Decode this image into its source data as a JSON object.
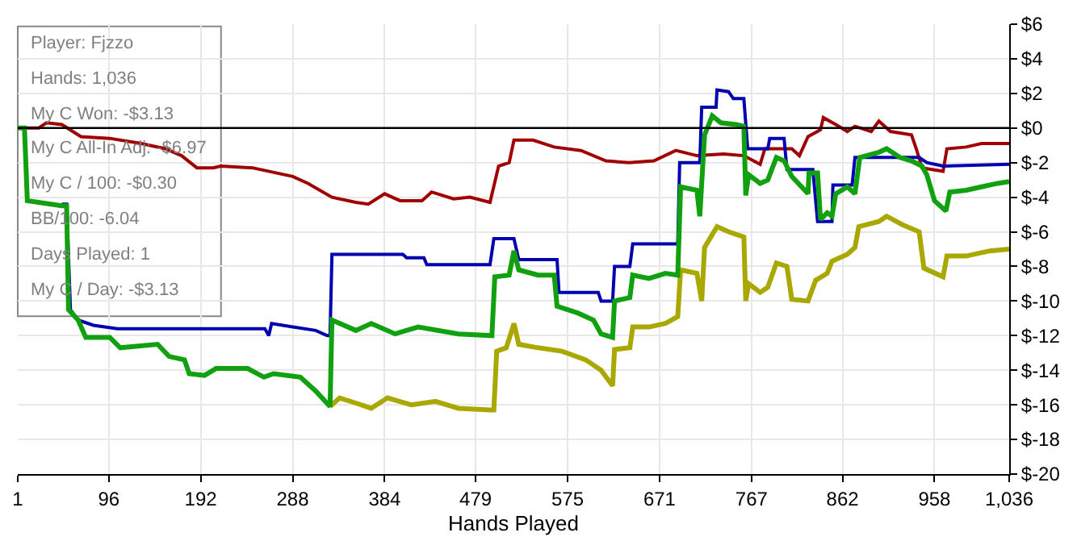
{
  "chart_data": {
    "type": "line",
    "xlabel": "Hands Played",
    "xlim": [
      1,
      1036
    ],
    "xticks": [
      1,
      96,
      192,
      288,
      384,
      479,
      575,
      671,
      767,
      862,
      958,
      {
        "value": 1036,
        "label": "1,036"
      }
    ],
    "ylim": [
      -20,
      6
    ],
    "yticks": [
      {
        "value": -20,
        "label": "$-20"
      },
      {
        "value": -18,
        "label": "$-18"
      },
      {
        "value": -16,
        "label": "$-16"
      },
      {
        "value": -14,
        "label": "$-14"
      },
      {
        "value": -12,
        "label": "$-12"
      },
      {
        "value": -10,
        "label": "$-10"
      },
      {
        "value": -8,
        "label": "$-8"
      },
      {
        "value": -6,
        "label": "$-6"
      },
      {
        "value": -4,
        "label": "$-4"
      },
      {
        "value": -2,
        "label": "$-2"
      },
      {
        "value": 0,
        "label": "$0"
      },
      {
        "value": 2,
        "label": "$2"
      },
      {
        "value": 4,
        "label": "$4"
      },
      {
        "value": 6,
        "label": "$6"
      }
    ],
    "grid": true,
    "marker": "none",
    "line_style": "solid",
    "ref_lines": [
      {
        "axis": "y",
        "value": 0,
        "color": "#000000"
      }
    ],
    "annotations": [
      "Player: Fjzzo",
      "Hands: 1,036",
      "My C Won: -$3.13",
      "My C All-In Adj: -$6.97",
      "My C / 100: -$0.30",
      "BB/100: -6.04",
      "Days Played: 1",
      "My C / Day: -$3.13"
    ],
    "series": [
      {
        "color": "#a00000",
        "x": [
          1,
          23,
          31,
          47,
          67,
          97,
          130,
          155,
          172,
          188,
          205,
          213,
          246,
          288,
          304,
          329,
          354,
          367,
          384,
          400,
          423,
          433,
          456,
          473,
          494,
          503,
          514,
          519,
          539,
          561,
          589,
          615,
          639,
          665,
          688,
          710,
          738,
          759,
          776,
          781,
          809,
          817,
          826,
          839,
          842,
          855,
          867,
          875,
          892,
          900,
          912,
          934,
          939,
          945,
          967,
          971,
          991,
          1007,
          1036
        ],
        "values": [
          0,
          0,
          0.3,
          0.2,
          -0.5,
          -0.6,
          -0.9,
          -1.2,
          -1.6,
          -2.3,
          -2.3,
          -2.2,
          -2.3,
          -2.8,
          -3.2,
          -4.0,
          -4.3,
          -4.4,
          -3.8,
          -4.2,
          -4.2,
          -3.7,
          -4.1,
          -4.0,
          -4.3,
          -2.2,
          -2.0,
          -0.7,
          -0.7,
          -1.1,
          -1.3,
          -1.9,
          -2.0,
          -1.9,
          -1.3,
          -1.6,
          -1.5,
          -1.6,
          -2.1,
          -1.2,
          -1.2,
          -1.6,
          -0.5,
          -0.1,
          0.6,
          0.2,
          -0.2,
          0.1,
          -0.2,
          0.4,
          -0.2,
          -0.4,
          -1.2,
          -2.3,
          -2.5,
          -1.2,
          -1.1,
          -0.9,
          -0.9
        ]
      },
      {
        "color": "#a8a800",
        "x": [
          327,
          337,
          354,
          370,
          387,
          412,
          437,
          461,
          494,
          498,
          501,
          511,
          519,
          524,
          544,
          569,
          594,
          610,
          622,
          624,
          640,
          643,
          660,
          677,
          690,
          693,
          710,
          715,
          718,
          731,
          743,
          759,
          761,
          764,
          776,
          784,
          793,
          804,
          809,
          826,
          834,
          846,
          851,
          867,
          875,
          879,
          900,
          908,
          925,
          942,
          947,
          967,
          971,
          991,
          1016,
          1036
        ],
        "values": [
          -16.1,
          -15.6,
          -15.9,
          -16.2,
          -15.6,
          -16.0,
          -15.8,
          -16.2,
          -16.3,
          -16.3,
          -12.9,
          -12.7,
          -11.3,
          -12.5,
          -12.7,
          -12.9,
          -13.4,
          -14.0,
          -14.9,
          -12.8,
          -12.7,
          -11.5,
          -11.5,
          -11.3,
          -10.9,
          -8.2,
          -8.4,
          -10.0,
          -6.9,
          -5.7,
          -6.0,
          -6.3,
          -10.0,
          -9.0,
          -9.5,
          -9.2,
          -7.8,
          -8.0,
          -9.9,
          -10.0,
          -8.8,
          -8.4,
          -7.7,
          -7.3,
          -6.9,
          -5.7,
          -5.4,
          -5.1,
          -5.6,
          -6.0,
          -8.1,
          -8.6,
          -7.4,
          -7.4,
          -7.1,
          -7.0
        ]
      },
      {
        "color": "#0000b0",
        "x": [
          47,
          52,
          56,
          64,
          80,
          105,
          259,
          263,
          266,
          288,
          312,
          324,
          327,
          329,
          403,
          407,
          425,
          428,
          494,
          498,
          519,
          524,
          564,
          566,
          607,
          610,
          622,
          624,
          640,
          643,
          690,
          692,
          713,
          715,
          730,
          731,
          743,
          748,
          759,
          763,
          784,
          786,
          801,
          804,
          831,
          836,
          851,
          852,
          872,
          875,
          942,
          950,
          967,
          1036
        ],
        "values": [
          -4.4,
          -4.4,
          -10.5,
          -11.1,
          -11.4,
          -11.6,
          -11.6,
          -12.0,
          -11.3,
          -11.5,
          -11.7,
          -12.0,
          -12.0,
          -7.3,
          -7.3,
          -7.5,
          -7.5,
          -7.9,
          -7.9,
          -6.4,
          -6.4,
          -7.6,
          -7.6,
          -9.5,
          -9.5,
          -10.0,
          -10.0,
          -8.0,
          -8.0,
          -6.7,
          -6.7,
          -2.0,
          -2.0,
          1.2,
          1.2,
          2.2,
          2.1,
          1.7,
          1.7,
          -1.2,
          -1.2,
          -0.6,
          -0.6,
          -2.4,
          -2.4,
          -5.4,
          -5.4,
          -3.3,
          -3.3,
          -1.7,
          -1.7,
          -2.0,
          -2.2,
          -2.1
        ]
      },
      {
        "color": "#10a010",
        "x": [
          1,
          8,
          11,
          47,
          52,
          54,
          64,
          72,
          97,
          108,
          147,
          159,
          175,
          180,
          196,
          208,
          241,
          258,
          268,
          296,
          312,
          327,
          329,
          354,
          370,
          395,
          419,
          461,
          496,
          499,
          514,
          519,
          524,
          544,
          561,
          564,
          586,
          602,
          610,
          622,
          624,
          640,
          643,
          660,
          677,
          690,
          693,
          710,
          713,
          718,
          726,
          735,
          751,
          759,
          761,
          764,
          776,
          784,
          793,
          801,
          809,
          826,
          827,
          836,
          839,
          846,
          851,
          855,
          867,
          875,
          880,
          900,
          908,
          922,
          934,
          945,
          950,
          958,
          970,
          974,
          991,
          1007,
          1024,
          1036
        ],
        "values": [
          0,
          0,
          -4.2,
          -4.5,
          -4.5,
          -10.5,
          -11.1,
          -12.1,
          -12.1,
          -12.7,
          -12.5,
          -13.2,
          -13.4,
          -14.2,
          -14.3,
          -13.9,
          -13.9,
          -14.4,
          -14.2,
          -14.4,
          -15.2,
          -16.1,
          -11.1,
          -11.7,
          -11.3,
          -11.9,
          -11.5,
          -11.9,
          -12.0,
          -8.6,
          -8.5,
          -7.1,
          -8.2,
          -8.5,
          -8.5,
          -10.3,
          -10.7,
          -11.1,
          -11.9,
          -12.1,
          -10.0,
          -9.8,
          -8.5,
          -8.7,
          -8.4,
          -8.5,
          -3.4,
          -3.6,
          -5.1,
          -0.4,
          0.7,
          0.3,
          0.2,
          0.1,
          -3.9,
          -2.7,
          -3.2,
          -3.0,
          -1.7,
          -1.9,
          -2.8,
          -3.8,
          -2.6,
          -2.6,
          -5.3,
          -4.9,
          -5.1,
          -3.8,
          -3.4,
          -3.8,
          -1.7,
          -1.4,
          -1.2,
          -1.7,
          -1.9,
          -2.2,
          -2.7,
          -4.2,
          -4.8,
          -3.7,
          -3.6,
          -3.4,
          -3.2,
          -3.1
        ]
      }
    ]
  }
}
